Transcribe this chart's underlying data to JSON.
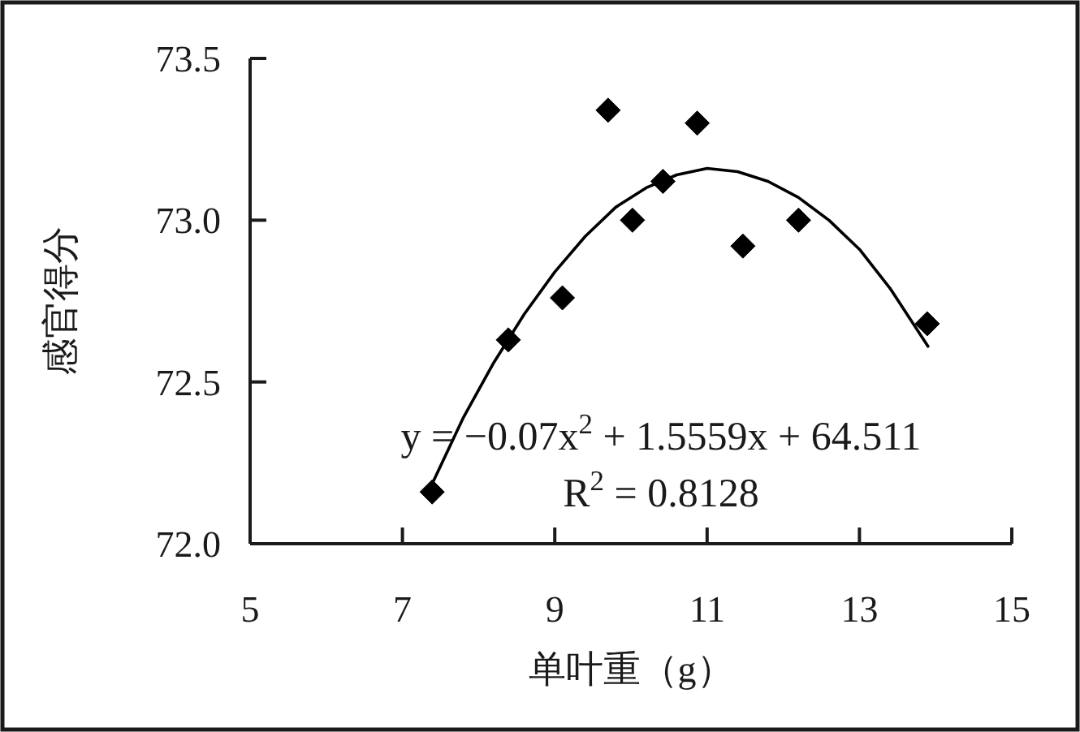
{
  "chart_data": {
    "type": "scatter",
    "xlabel": "单叶重（g）",
    "ylabel": "感官得分",
    "annotations": [
      "y = −0.07x$^{2}$ + 1.5559x + 64.511",
      "R$^{2}$ = 0.8128"
    ],
    "xlim": [
      5,
      15
    ],
    "xticks": [
      5,
      7,
      9,
      11,
      13,
      15
    ],
    "ylim": [
      72.0,
      73.5
    ],
    "yticks": [
      {
        "value": 72,
        "label": "72.0"
      },
      72.5,
      {
        "value": 73,
        "label": "73.0"
      },
      73.5
    ],
    "series": [
      {
        "color": "#000000",
        "marker": "diamond",
        "x": [
          7.39,
          8.39,
          9.1,
          9.7,
          10.02,
          10.42,
          10.87,
          11.47,
          12.2,
          13.89
        ],
        "values": [
          72.16,
          72.63,
          72.76,
          73.34,
          73.0,
          73.12,
          73.3,
          72.92,
          73.0,
          72.68
        ]
      },
      {
        "type": "line",
        "color": "#000000",
        "marker": "none",
        "line_style": "solid",
        "x": [
          7.4,
          7.8,
          8.2,
          8.6,
          9.0,
          9.4,
          9.8,
          10.2,
          10.6,
          11.0,
          11.4,
          11.8,
          12.2,
          12.6,
          13.0,
          13.4,
          13.9
        ],
        "values": [
          72.19,
          72.39,
          72.56,
          72.71,
          72.84,
          72.95,
          73.04,
          73.1,
          73.14,
          73.16,
          73.15,
          73.12,
          73.07,
          73.0,
          72.91,
          72.79,
          72.61
        ]
      }
    ]
  }
}
